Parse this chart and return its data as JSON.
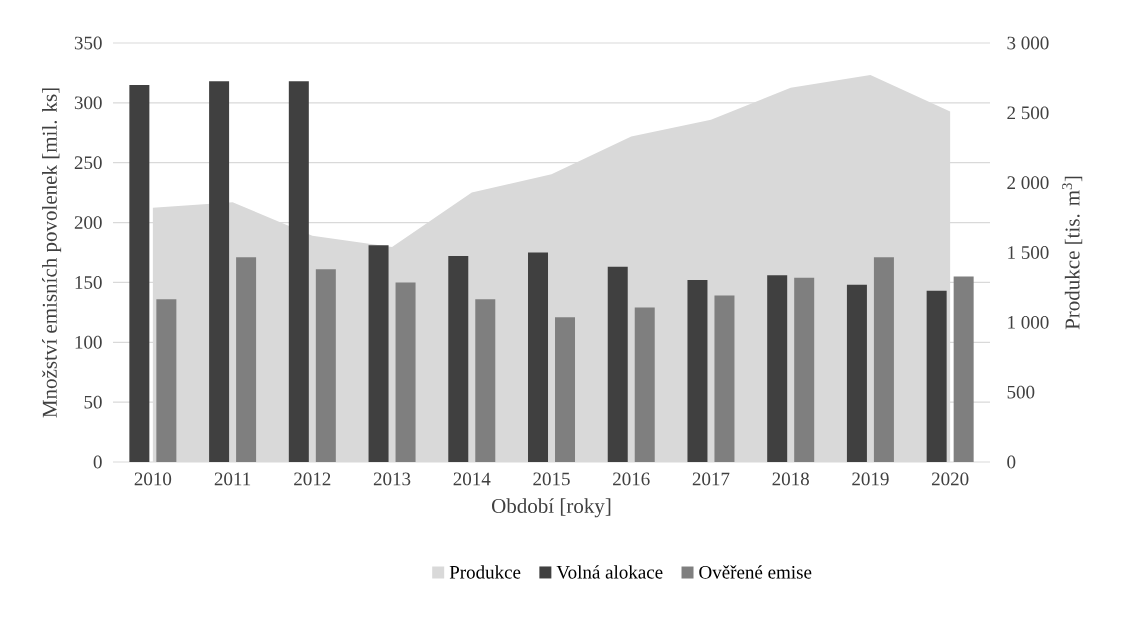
{
  "chart_data": {
    "type": "bar",
    "xlabel": "Období [roky]",
    "ylabel": "Množství emisních povolenek [mil. ks]",
    "y2label": "Produkce [tis. m$^{3}$]",
    "categories": [
      "2010",
      "2011",
      "2012",
      "2013",
      "2014",
      "2015",
      "2016",
      "2017",
      "2018",
      "2019",
      "2020"
    ],
    "series": [
      {
        "name": "Produkce",
        "type": "area",
        "axis": "y2",
        "color": "#d9d9d9",
        "values": [
          1820,
          1860,
          1620,
          1540,
          1930,
          2060,
          2330,
          2450,
          2680,
          2770,
          2510
        ]
      },
      {
        "name": "Volná alokace",
        "color": "#404040",
        "values": [
          315,
          318,
          318,
          181,
          172,
          175,
          163,
          152,
          156,
          148,
          143
        ]
      },
      {
        "name": "Ověřené emise",
        "color": "#7f7f7f",
        "values": [
          136,
          171,
          161,
          150,
          136,
          121,
          129,
          139,
          154,
          171,
          155
        ]
      }
    ],
    "ylim": [
      0,
      350
    ],
    "yticks": [
      0,
      50,
      100,
      150,
      200,
      250,
      300,
      350
    ],
    "y2lim": [
      0,
      3000
    ],
    "y2ticks": [
      0,
      500,
      {
        "value": 1000,
        "label": "1 000"
      },
      {
        "value": 1500,
        "label": "1 500"
      },
      {
        "value": 2000,
        "label": "2 000"
      },
      {
        "value": 2500,
        "label": "2 500"
      },
      {
        "value": 3000,
        "label": "3 000"
      }
    ],
    "grid": "y",
    "legend": "bottom"
  }
}
